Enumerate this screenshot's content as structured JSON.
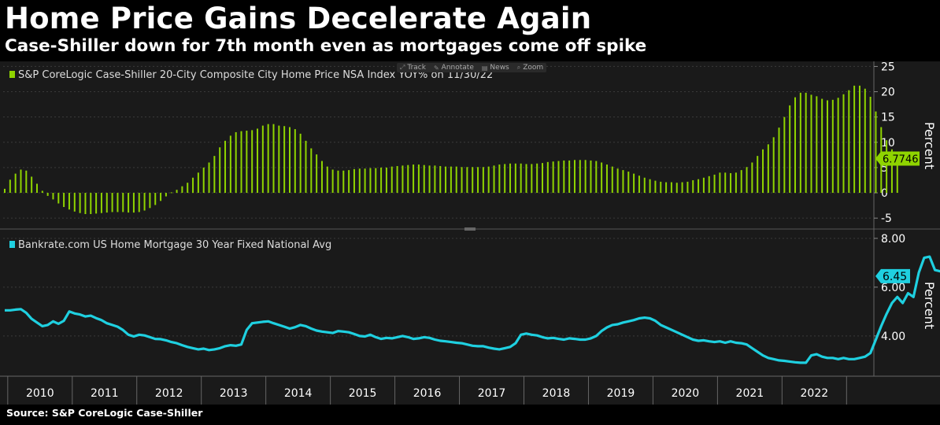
{
  "title": "Home Price Gains Decelerate Again",
  "subtitle": "Case-Shiller down for 7th month even as mortgages come off spike",
  "source": "Source: S&P CoreLogic Case-Shiller",
  "toolbar": [
    {
      "label": "Track",
      "icon": "track-icon"
    },
    {
      "label": "Annotate",
      "icon": "annotate-icon"
    },
    {
      "label": "News",
      "icon": "news-icon"
    },
    {
      "label": "Zoom",
      "icon": "zoom-icon"
    }
  ],
  "colors": {
    "green": "#8fd400",
    "cyan": "#1fd0e0",
    "panel": "#1a1a1a",
    "grid": "#3a3a3a"
  },
  "chart_data": [
    {
      "type": "bar",
      "legend": "S&P CoreLogic Case-Shiller 20-City Composite City Home Price NSA Index YOY% on 11/30/22",
      "ylabel": "Percent",
      "ylim": [
        -7,
        26
      ],
      "yticks": [
        25,
        20,
        15,
        10,
        5,
        0,
        -5
      ],
      "last_value_label": "6.7746",
      "color": "#8fd400",
      "x_start": "2009-12",
      "x_end": "2022-11",
      "values": [
        0.8,
        2.6,
        3.8,
        4.6,
        4.4,
        3.2,
        1.8,
        0.4,
        -0.6,
        -1.3,
        -2.1,
        -2.8,
        -3.3,
        -3.7,
        -4.0,
        -4.2,
        -4.2,
        -4.1,
        -4.0,
        -3.9,
        -3.8,
        -3.8,
        -3.8,
        -3.9,
        -3.9,
        -3.8,
        -3.5,
        -3.0,
        -2.4,
        -1.6,
        -0.7,
        0.1,
        0.6,
        1.3,
        2.0,
        3.0,
        4.0,
        5.0,
        6.0,
        7.3,
        9.0,
        10.3,
        11.3,
        12.0,
        12.2,
        12.3,
        12.4,
        12.7,
        13.3,
        13.6,
        13.6,
        13.3,
        13.2,
        13.0,
        12.6,
        11.7,
        10.3,
        8.8,
        7.6,
        6.3,
        5.2,
        4.6,
        4.4,
        4.4,
        4.5,
        4.7,
        4.8,
        4.8,
        4.9,
        4.9,
        5.0,
        5.0,
        5.2,
        5.3,
        5.4,
        5.5,
        5.6,
        5.6,
        5.5,
        5.4,
        5.4,
        5.3,
        5.2,
        5.2,
        5.2,
        5.1,
        5.1,
        5.1,
        5.1,
        5.1,
        5.2,
        5.4,
        5.6,
        5.7,
        5.8,
        5.8,
        5.8,
        5.7,
        5.7,
        5.8,
        5.9,
        6.1,
        6.2,
        6.3,
        6.4,
        6.4,
        6.5,
        6.5,
        6.5,
        6.4,
        6.3,
        6.0,
        5.6,
        5.2,
        4.8,
        4.5,
        4.2,
        3.8,
        3.4,
        3.0,
        2.7,
        2.4,
        2.2,
        2.1,
        2.1,
        2.0,
        2.1,
        2.2,
        2.5,
        2.7,
        3.0,
        3.3,
        3.6,
        4.0,
        4.0,
        3.9,
        4.0,
        4.5,
        5.1,
        6.0,
        7.3,
        8.6,
        9.6,
        11.0,
        12.9,
        15.0,
        17.3,
        18.9,
        19.8,
        19.8,
        19.4,
        19.1,
        18.6,
        18.3,
        18.4,
        18.8,
        19.5,
        20.3,
        21.2,
        21.2,
        20.6,
        19.0,
        16.1,
        13.0,
        10.4,
        8.6,
        6.77
      ]
    },
    {
      "type": "line",
      "legend": "Bankrate.com US Home Mortgage 30 Year Fixed National Avg",
      "ylabel": "Percent",
      "ylim": [
        2.35,
        8.35
      ],
      "yticks": [
        "8.00",
        "6.00",
        "4.00"
      ],
      "last_value_label": "6.45",
      "color": "#1fd0e0",
      "x_start": "2009-12",
      "x_end": "2022-11",
      "values": [
        5.05,
        5.05,
        5.08,
        5.1,
        4.95,
        4.7,
        4.55,
        4.4,
        4.45,
        4.6,
        4.5,
        4.62,
        5.0,
        4.92,
        4.88,
        4.8,
        4.83,
        4.73,
        4.65,
        4.52,
        4.45,
        4.38,
        4.24,
        4.05,
        3.98,
        4.05,
        4.02,
        3.95,
        3.88,
        3.87,
        3.82,
        3.75,
        3.7,
        3.62,
        3.55,
        3.5,
        3.45,
        3.48,
        3.42,
        3.45,
        3.5,
        3.58,
        3.62,
        3.6,
        3.65,
        4.25,
        4.52,
        4.55,
        4.58,
        4.6,
        4.52,
        4.45,
        4.38,
        4.3,
        4.36,
        4.45,
        4.4,
        4.3,
        4.22,
        4.18,
        4.15,
        4.12,
        4.2,
        4.18,
        4.15,
        4.08,
        4.0,
        3.98,
        4.05,
        3.95,
        3.88,
        3.92,
        3.9,
        3.95,
        4.0,
        3.95,
        3.88,
        3.9,
        3.95,
        3.92,
        3.85,
        3.8,
        3.78,
        3.75,
        3.72,
        3.7,
        3.65,
        3.6,
        3.58,
        3.58,
        3.52,
        3.48,
        3.45,
        3.5,
        3.55,
        3.7,
        4.05,
        4.1,
        4.05,
        4.02,
        3.95,
        3.9,
        3.92,
        3.88,
        3.85,
        3.9,
        3.88,
        3.85,
        3.85,
        3.9,
        4.0,
        4.2,
        4.35,
        4.45,
        4.48,
        4.55,
        4.6,
        4.65,
        4.72,
        4.75,
        4.72,
        4.62,
        4.45,
        4.35,
        4.25,
        4.15,
        4.05,
        3.95,
        3.85,
        3.8,
        3.82,
        3.78,
        3.75,
        3.78,
        3.72,
        3.78,
        3.72,
        3.7,
        3.65,
        3.5,
        3.35,
        3.2,
        3.1,
        3.05,
        3.0,
        2.98,
        2.95,
        2.92,
        2.9,
        2.9,
        3.2,
        3.25,
        3.15,
        3.1,
        3.1,
        3.05,
        3.1,
        3.05,
        3.05,
        3.1,
        3.15,
        3.3,
        3.85,
        4.4,
        4.9,
        5.35,
        5.6,
        5.35,
        5.75,
        5.6,
        6.6,
        7.2,
        7.25,
        6.7,
        6.65,
        6.45
      ]
    }
  ],
  "x_axis": {
    "labels": [
      "2010",
      "2011",
      "2012",
      "2013",
      "2014",
      "2015",
      "2016",
      "2017",
      "2018",
      "2019",
      "2020",
      "2021",
      "2022"
    ]
  }
}
